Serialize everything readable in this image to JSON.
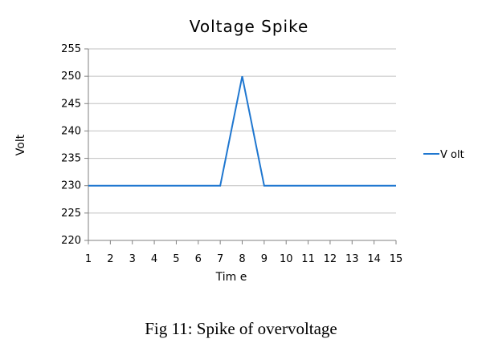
{
  "chart_data": {
    "type": "line",
    "title": "Voltage Spike",
    "xlabel": "Tim e",
    "ylabel": "Volt",
    "x": [
      1,
      2,
      3,
      4,
      5,
      6,
      7,
      8,
      9,
      10,
      11,
      12,
      13,
      14,
      15
    ],
    "ylim": [
      220,
      255
    ],
    "yticks": [
      220,
      225,
      230,
      235,
      240,
      245,
      250,
      255
    ],
    "grid": true,
    "legend_position": "right",
    "series": [
      {
        "name": "V olt",
        "color": "#1f77d0",
        "values": [
          230,
          230,
          230,
          230,
          230,
          230,
          230,
          250,
          230,
          230,
          230,
          230,
          230,
          230,
          230
        ]
      }
    ]
  },
  "caption": "Fig 11: Spike of overvoltage"
}
